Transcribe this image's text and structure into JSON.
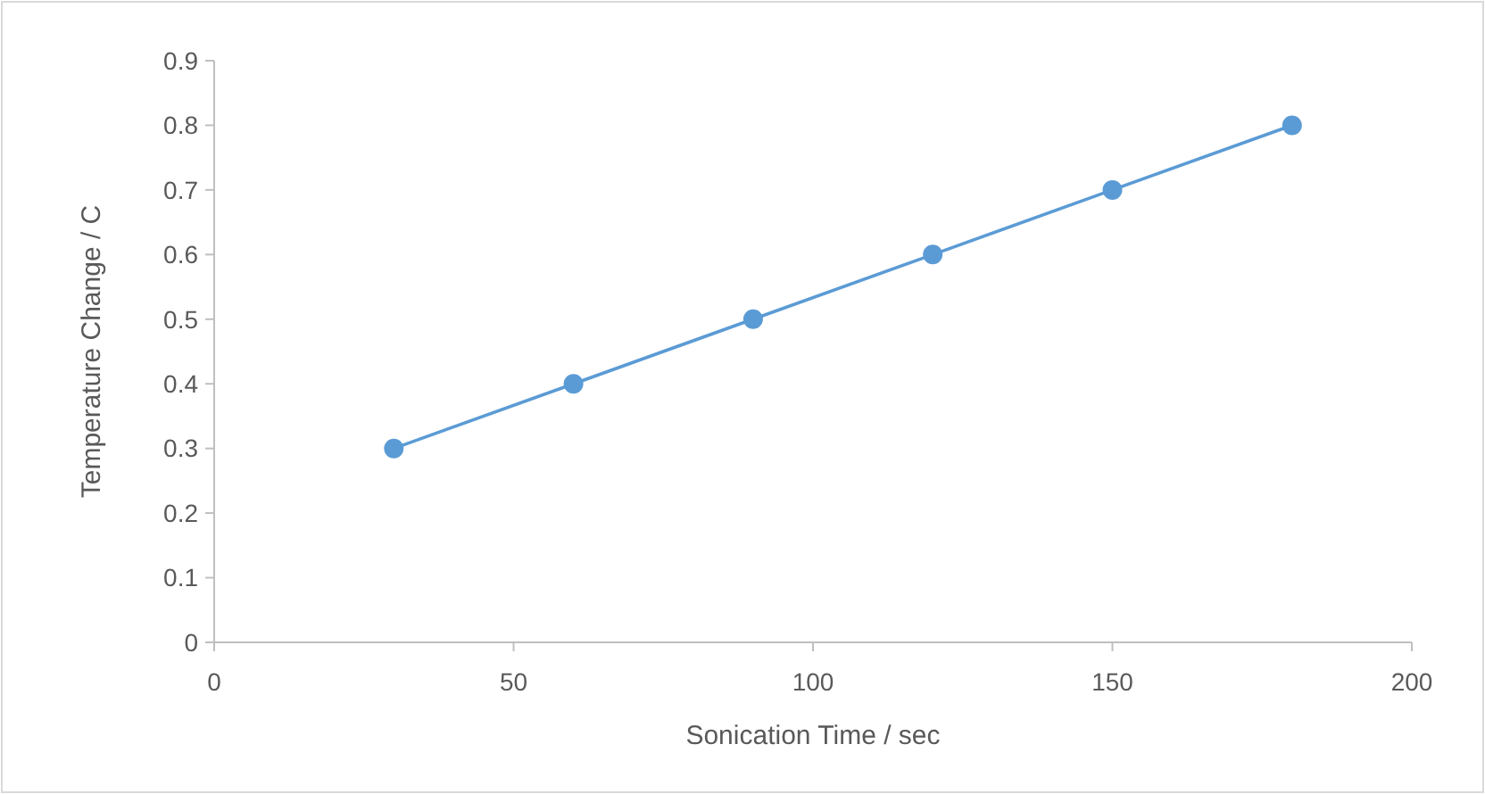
{
  "chart_data": {
    "type": "line",
    "xlabel": "Sonication Time / sec",
    "ylabel": "Temperature Change / C",
    "x": [
      30,
      60,
      90,
      120,
      150,
      180
    ],
    "series": [
      {
        "color": "#5b9bd5",
        "values": [
          0.3,
          0.4,
          0.5,
          0.6,
          0.7,
          0.8
        ]
      }
    ],
    "marker": "circle",
    "line_style": "solid",
    "grid": false,
    "xlim": [
      0,
      200
    ],
    "xticks": [
      0,
      50,
      100,
      150,
      200
    ],
    "ylim": [
      0,
      0.9
    ],
    "yticks": [
      0,
      0.1,
      0.2,
      0.3,
      0.4,
      0.5,
      0.6,
      0.7,
      0.8,
      0.9
    ]
  }
}
